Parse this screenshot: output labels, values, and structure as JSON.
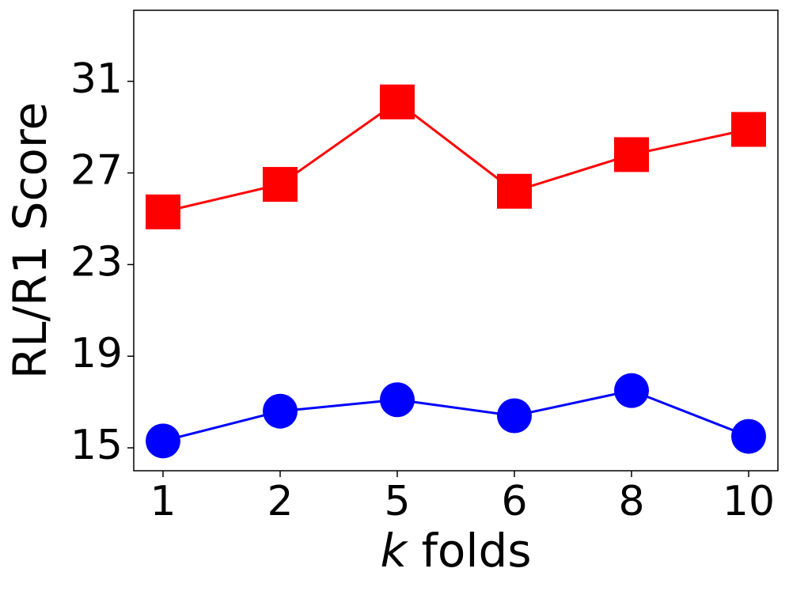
{
  "chart_data": {
    "type": "line",
    "xlabel": "k folds",
    "ylabel": "RL/R1 Score",
    "categories": [
      "1",
      "2",
      "5",
      "6",
      "8",
      "10"
    ],
    "series": [
      {
        "color": "#ff0000",
        "marker": "square",
        "values": [
          25.3,
          26.5,
          30.1,
          26.2,
          27.8,
          28.9
        ]
      },
      {
        "color": "#0000ff",
        "marker": "circle",
        "values": [
          15.3,
          16.6,
          17.1,
          16.4,
          17.5,
          15.5
        ]
      }
    ],
    "ylim": [
      14,
      34.1
    ],
    "yticks": [
      15,
      19,
      23,
      27,
      31
    ],
    "grid": false
  }
}
